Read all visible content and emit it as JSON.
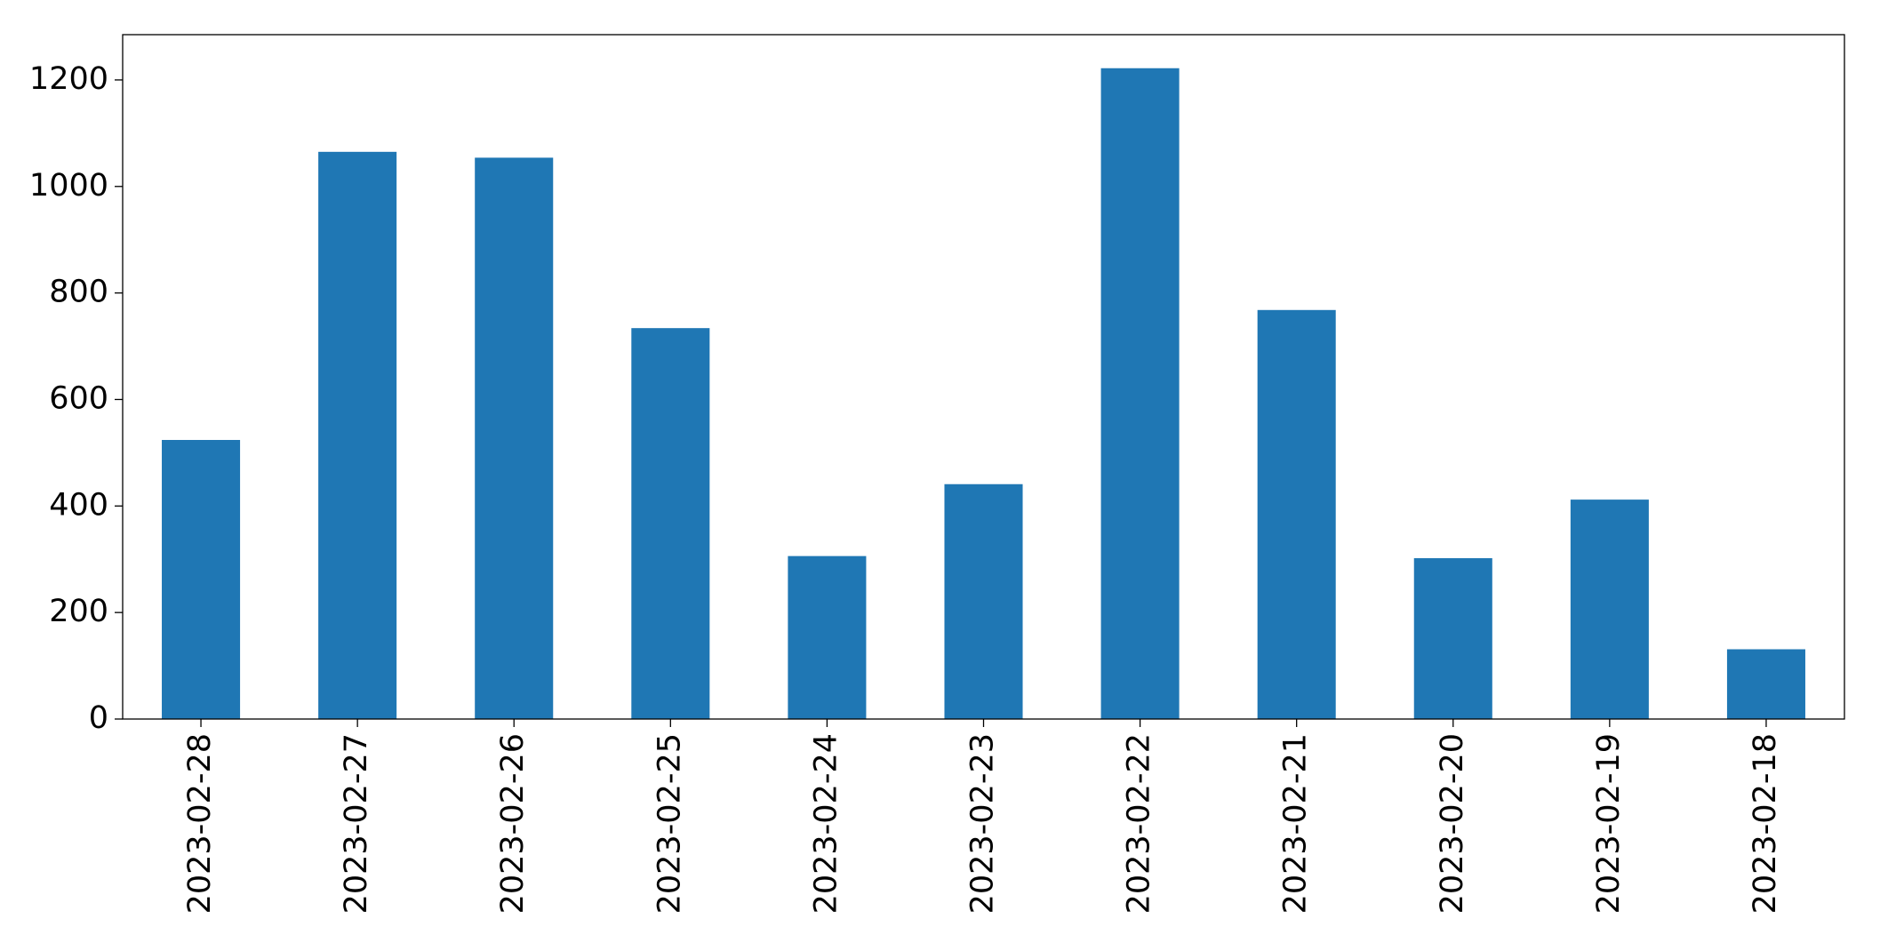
{
  "chart_data": {
    "type": "bar",
    "categories": [
      "2023-02-28",
      "2023-02-27",
      "2023-02-26",
      "2023-02-25",
      "2023-02-24",
      "2023-02-23",
      "2023-02-22",
      "2023-02-21",
      "2023-02-20",
      "2023-02-19",
      "2023-02-18"
    ],
    "values": [
      524,
      1065,
      1054,
      734,
      306,
      441,
      1222,
      768,
      302,
      412,
      131
    ],
    "color": "#1f77b4",
    "ylim": [
      0,
      1285
    ],
    "yticks": [
      0,
      200,
      400,
      600,
      800,
      1000,
      1200
    ],
    "grid": false
  }
}
